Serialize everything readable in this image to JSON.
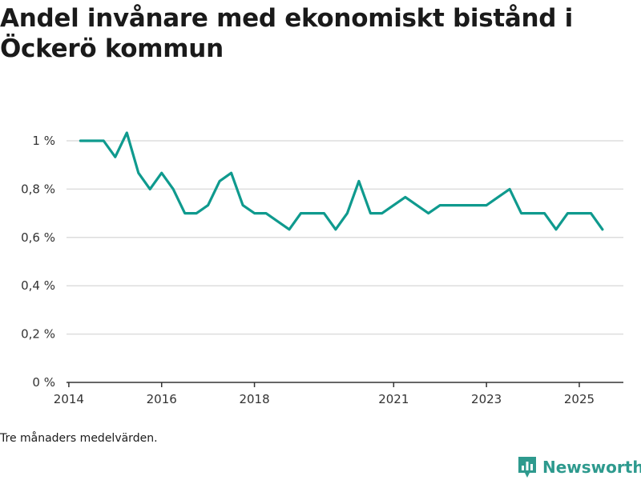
{
  "colors": {
    "line": "#0f9a8e",
    "grid": "#dddddd",
    "axis": "#333333",
    "brand": "#2e9a8e"
  },
  "chart_data": {
    "type": "line",
    "title": "Andel invånare med ekonomiskt bistånd i Öckerö kommun",
    "xlabel": "",
    "ylabel": "",
    "ylim": [
      0,
      1.05
    ],
    "xlim": [
      2013.95,
      2025.95
    ],
    "yticks": [
      0,
      0.2,
      0.4,
      0.6,
      0.8,
      1.0
    ],
    "ytick_labels": [
      "0 %",
      "0,2 %",
      "0,4 %",
      "0,6 %",
      "0,8 %",
      "1 %"
    ],
    "xticks": [
      2014,
      2016,
      2018,
      2021,
      2023,
      2025
    ],
    "xtick_labels": [
      "2014",
      "2016",
      "2018",
      "2021",
      "2023",
      "2025"
    ],
    "series": [
      {
        "name": "Andel invånare med ekonomiskt bistånd",
        "x": [
          2014.25,
          2014.5,
          2014.75,
          2015.0,
          2015.25,
          2015.5,
          2015.75,
          2016.0,
          2016.25,
          2016.5,
          2016.75,
          2017.0,
          2017.25,
          2017.5,
          2017.75,
          2018.0,
          2018.25,
          2018.75,
          2019.0,
          2019.25,
          2019.5,
          2019.75,
          2020.0,
          2020.25,
          2020.5,
          2020.75,
          2021.25,
          2021.75,
          2022.0,
          2022.25,
          2022.5,
          2022.75,
          2023.0,
          2023.25,
          2023.5,
          2023.75,
          2024.0,
          2024.25,
          2024.5,
          2024.75,
          2025.0,
          2025.25,
          2025.5
        ],
        "values": [
          1.0,
          1.0,
          1.0,
          0.933,
          1.033,
          0.867,
          0.8,
          0.867,
          0.8,
          0.7,
          0.7,
          0.733,
          0.833,
          0.867,
          0.733,
          0.7,
          0.7,
          0.633,
          0.7,
          0.7,
          0.7,
          0.633,
          0.7,
          0.833,
          0.7,
          0.7,
          0.767,
          0.7,
          0.733,
          0.733,
          0.733,
          0.733,
          0.733,
          0.767,
          0.8,
          0.7,
          0.7,
          0.7,
          0.633,
          0.7,
          0.7,
          0.7,
          0.633
        ]
      }
    ],
    "note": "Tre månaders medelvärden."
  },
  "brand": {
    "name": "Newsworthy",
    "logo_icon": "bar-chart-icon"
  }
}
